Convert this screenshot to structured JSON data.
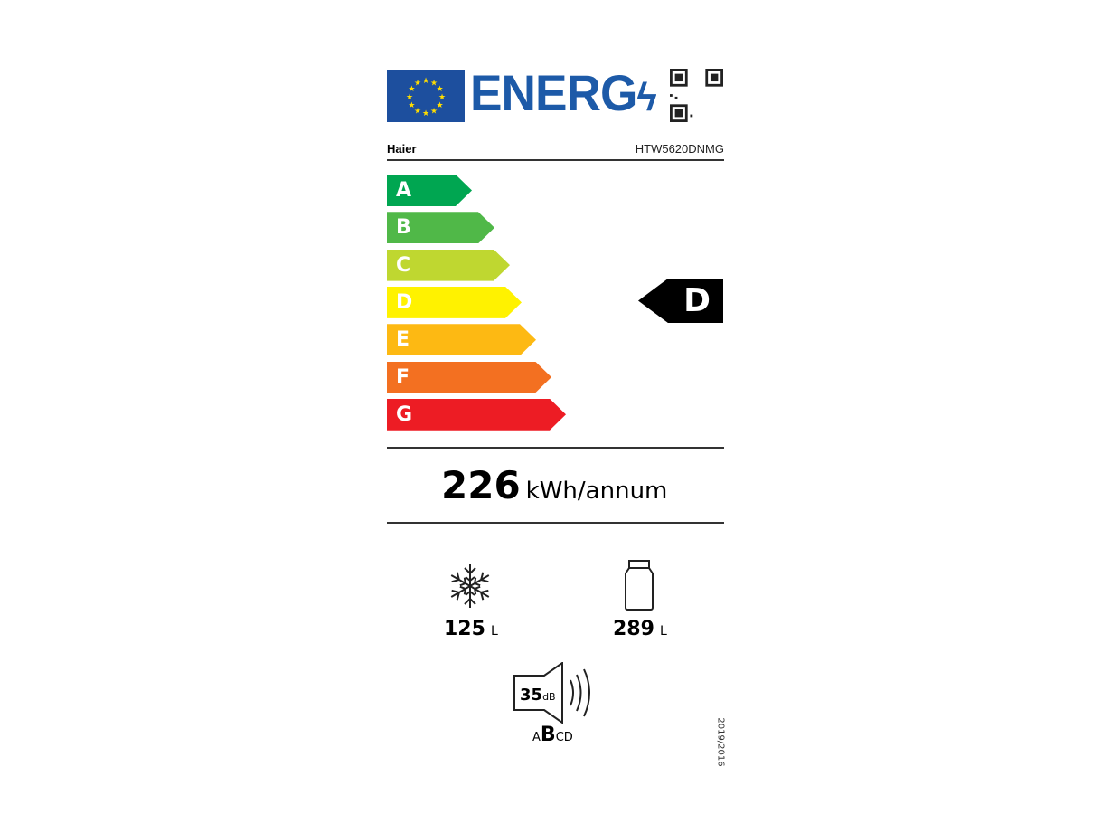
{
  "header": {
    "logo_text": "ENERG",
    "supplier": "Haier",
    "model": "HTW5620DNMG"
  },
  "scale": {
    "classes": [
      {
        "letter": "A",
        "color": "#00a651"
      },
      {
        "letter": "B",
        "color": "#50b848"
      },
      {
        "letter": "C",
        "color": "#bfd730"
      },
      {
        "letter": "D",
        "color": "#fff200"
      },
      {
        "letter": "E",
        "color": "#fdb913"
      },
      {
        "letter": "F",
        "color": "#f37021"
      },
      {
        "letter": "G",
        "color": "#ed1c24"
      }
    ],
    "rating": "D"
  },
  "consumption": {
    "value": "226",
    "unit": "kWh/annum"
  },
  "freezer": {
    "icon": "snowflake-icon",
    "value": "125",
    "unit": "L"
  },
  "fridge": {
    "icon": "fridge-icon",
    "value": "289",
    "unit": "L"
  },
  "noise": {
    "icon": "speaker-icon",
    "value": "35",
    "unit": "dB",
    "classes": [
      "A",
      "B",
      "C",
      "D"
    ],
    "selected": "B"
  },
  "regulation": "2019/2016"
}
